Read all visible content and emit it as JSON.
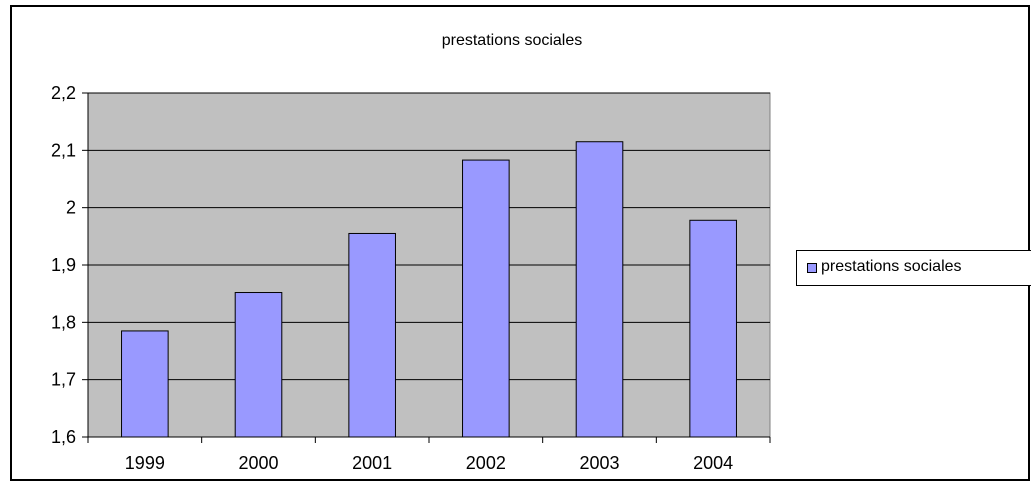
{
  "chart_data": {
    "type": "bar",
    "title": "prestations sociales",
    "xlabel": "",
    "ylabel": "",
    "categories": [
      "1999",
      "2000",
      "2001",
      "2002",
      "2003",
      "2004"
    ],
    "series": [
      {
        "name": "prestations sociales",
        "values": [
          1.785,
          1.852,
          1.955,
          2.083,
          2.115,
          1.978
        ]
      }
    ],
    "ylim": [
      1.6,
      2.2
    ],
    "yticks": [
      1.6,
      1.7,
      1.8,
      1.9,
      2.0,
      2.1,
      2.2
    ],
    "ytick_labels": [
      "1,6",
      "1,7",
      "1,8",
      "1,9",
      "2",
      "2,1",
      "2,2"
    ],
    "grid": true,
    "legend_position": "right",
    "colors": {
      "bar_fill": "#9999ff",
      "bar_stroke": "#000000",
      "plot_background": "#c0c0c0",
      "gridline": "#000000"
    }
  }
}
